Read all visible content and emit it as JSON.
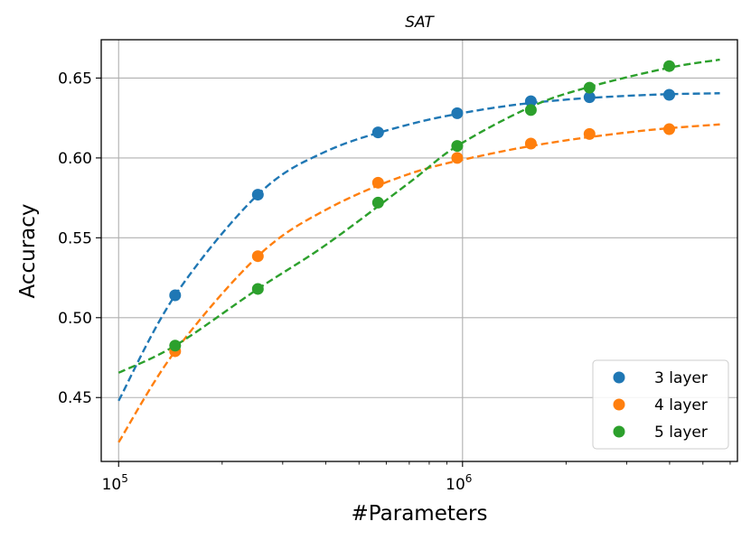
{
  "chart_data": {
    "type": "scatter",
    "title": "SAT",
    "xlabel": "#Parameters",
    "ylabel": "Accuracy",
    "x_scale": "log",
    "xlim": [
      89000,
      6300000
    ],
    "ylim": [
      0.41,
      0.674
    ],
    "x_ticks": [
      {
        "value": 100000,
        "base": "10",
        "exp": "5"
      },
      {
        "value": 1000000,
        "base": "10",
        "exp": "6"
      }
    ],
    "y_ticks": [
      0.45,
      0.5,
      0.55,
      0.6,
      0.65
    ],
    "y_tick_labels": [
      "0.45",
      "0.50",
      "0.55",
      "0.60",
      "0.65"
    ],
    "grid": true,
    "legend_position": "bottom-right",
    "series": [
      {
        "name": "3 layer",
        "color": "#1f77b4",
        "points": [
          {
            "x": 146000,
            "y": 0.514
          },
          {
            "x": 254000,
            "y": 0.577
          },
          {
            "x": 568000,
            "y": 0.616
          },
          {
            "x": 965000,
            "y": 0.628
          },
          {
            "x": 1580000,
            "y": 0.6355
          },
          {
            "x": 2340000,
            "y": 0.638
          },
          {
            "x": 3990000,
            "y": 0.6395
          }
        ],
        "fit": [
          {
            "x": 100000,
            "y": 0.448
          },
          {
            "x": 146000,
            "y": 0.514
          },
          {
            "x": 254000,
            "y": 0.577
          },
          {
            "x": 400000,
            "y": 0.604
          },
          {
            "x": 700000,
            "y": 0.621
          },
          {
            "x": 1200000,
            "y": 0.631
          },
          {
            "x": 2000000,
            "y": 0.6365
          },
          {
            "x": 3500000,
            "y": 0.6395
          },
          {
            "x": 5600000,
            "y": 0.6405
          }
        ]
      },
      {
        "name": "4 layer",
        "color": "#ff7f0e",
        "points": [
          {
            "x": 146000,
            "y": 0.479
          },
          {
            "x": 254000,
            "y": 0.5385
          },
          {
            "x": 568000,
            "y": 0.5845
          },
          {
            "x": 965000,
            "y": 0.6
          },
          {
            "x": 1580000,
            "y": 0.609
          },
          {
            "x": 2340000,
            "y": 0.615
          },
          {
            "x": 3990000,
            "y": 0.618
          }
        ],
        "fit": [
          {
            "x": 100000,
            "y": 0.422
          },
          {
            "x": 146000,
            "y": 0.479
          },
          {
            "x": 254000,
            "y": 0.5385
          },
          {
            "x": 400000,
            "y": 0.5675
          },
          {
            "x": 700000,
            "y": 0.59
          },
          {
            "x": 1200000,
            "y": 0.6025
          },
          {
            "x": 2000000,
            "y": 0.611
          },
          {
            "x": 3500000,
            "y": 0.6175
          },
          {
            "x": 5600000,
            "y": 0.621
          }
        ]
      },
      {
        "name": "5 layer",
        "color": "#2ca02c",
        "points": [
          {
            "x": 146000,
            "y": 0.4825
          },
          {
            "x": 254000,
            "y": 0.518
          },
          {
            "x": 568000,
            "y": 0.572
          },
          {
            "x": 965000,
            "y": 0.6075
          },
          {
            "x": 1580000,
            "y": 0.63
          },
          {
            "x": 2340000,
            "y": 0.644
          },
          {
            "x": 3990000,
            "y": 0.6575
          }
        ],
        "fit": [
          {
            "x": 100000,
            "y": 0.4655
          },
          {
            "x": 146000,
            "y": 0.4825
          },
          {
            "x": 254000,
            "y": 0.518
          },
          {
            "x": 400000,
            "y": 0.5455
          },
          {
            "x": 700000,
            "y": 0.5845
          },
          {
            "x": 965000,
            "y": 0.6075
          },
          {
            "x": 1580000,
            "y": 0.632
          },
          {
            "x": 2340000,
            "y": 0.6445
          },
          {
            "x": 3990000,
            "y": 0.6565
          },
          {
            "x": 5600000,
            "y": 0.6615
          }
        ]
      }
    ]
  }
}
